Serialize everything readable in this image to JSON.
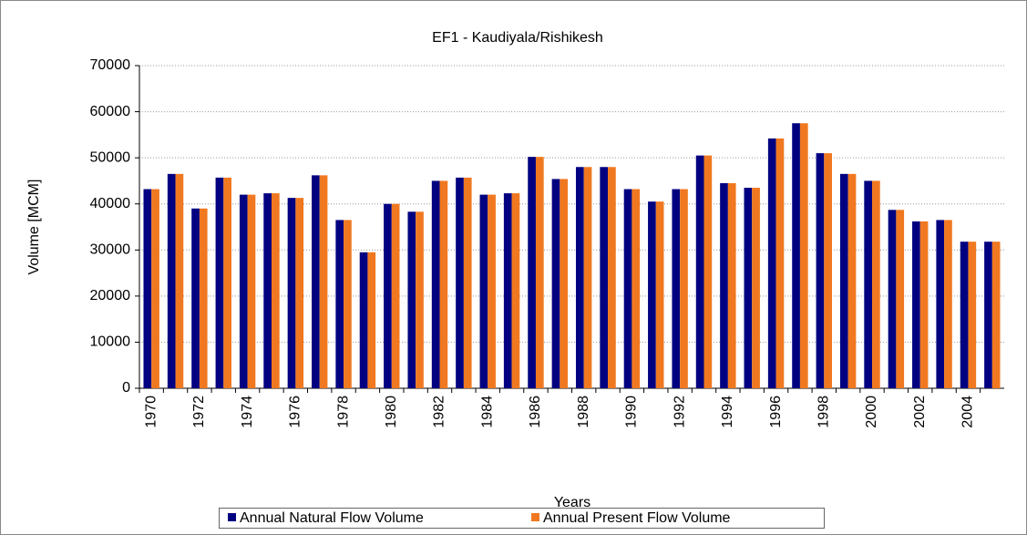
{
  "chart_data": {
    "type": "bar",
    "title": "EF1 - Kaudiyala/Rishikesh",
    "x_label": "Years",
    "y_label": "Volume [MCM]",
    "categories": [
      "1970",
      null,
      "1972",
      null,
      "1974",
      null,
      "1976",
      null,
      "1978",
      null,
      "1980",
      null,
      "1982",
      null,
      "1984",
      null,
      "1986",
      null,
      "1988",
      null,
      "1990",
      null,
      "1992",
      null,
      "1994",
      null,
      "1996",
      null,
      "1998",
      null,
      "2000",
      null,
      "2002",
      null,
      "2004",
      null
    ],
    "series": [
      {
        "name": "Annual Natural Flow Volume",
        "color": "#000080",
        "values": [
          43200,
          46500,
          39000,
          45700,
          42000,
          42300,
          41300,
          46200,
          36500,
          29500,
          40000,
          38300,
          45000,
          45700,
          42000,
          42300,
          50200,
          45400,
          48000,
          48000,
          43200,
          40500,
          43200,
          50500,
          44500,
          43500,
          54200,
          57500,
          51000,
          46500,
          45000,
          38700,
          36200,
          36500,
          31800,
          31800
        ]
      },
      {
        "name": "Annual Present Flow Volume",
        "color": "#f07820",
        "values": [
          43200,
          46500,
          39000,
          45700,
          42000,
          42300,
          41300,
          46200,
          36500,
          29500,
          40000,
          38300,
          45000,
          45700,
          42000,
          42300,
          50200,
          45400,
          48000,
          48000,
          43200,
          40500,
          43200,
          50500,
          44500,
          43500,
          54200,
          57500,
          51000,
          46500,
          45000,
          38700,
          36200,
          36500,
          31800,
          31800
        ]
      }
    ],
    "ylim": [
      0,
      70000
    ],
    "yticks": [
      0,
      10000,
      20000,
      30000,
      40000,
      50000,
      60000,
      70000
    ],
    "grid": true,
    "legend": "bottom"
  }
}
